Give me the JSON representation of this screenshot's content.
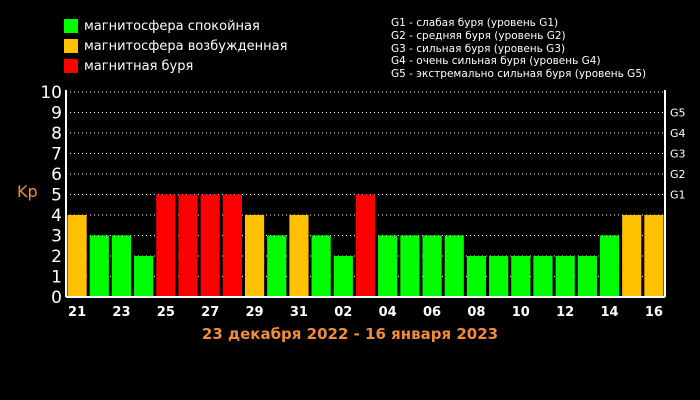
{
  "legend": {
    "items": [
      {
        "label": "магнитосфера спокойная",
        "color": "#00ff00"
      },
      {
        "label": "магнитосфера возбужденная",
        "color": "#ffc000"
      },
      {
        "label": "магнитная буря",
        "color": "#ff0000"
      }
    ],
    "storm_levels": [
      "G1 - слабая буря (уровень G1)",
      "G2 - средняя буря (уровень G2)",
      "G3 - сильная буря (уровень G3)",
      "G4 - очень сильная буря (уровень G4)",
      "G5 - экстремально сильная буря (уровень G5)"
    ]
  },
  "chart_data": {
    "type": "bar",
    "ylabel": "Kp",
    "xlabel": "23 декабря 2022 - 16 января 2023",
    "ylim": [
      0,
      10
    ],
    "y_ticks": [
      "0",
      "1",
      "2",
      "3",
      "4",
      "5",
      "6",
      "7",
      "8",
      "9",
      "10"
    ],
    "right_ticks": [
      {
        "label": "G1",
        "value": 5
      },
      {
        "label": "G2",
        "value": 6
      },
      {
        "label": "G3",
        "value": 7
      },
      {
        "label": "G4",
        "value": 8
      },
      {
        "label": "G5",
        "value": 9
      }
    ],
    "x_tick_labels": [
      "21",
      "23",
      "25",
      "27",
      "29",
      "31",
      "02",
      "04",
      "06",
      "08",
      "10",
      "12",
      "14",
      "16"
    ],
    "values": [
      4,
      3,
      3,
      2,
      5,
      5,
      5,
      5,
      4,
      3,
      4,
      3,
      2,
      5,
      3,
      3,
      3,
      3,
      2,
      2,
      2,
      2,
      2,
      2,
      3,
      4,
      4
    ],
    "colors": {
      "quiet": "#00ff00",
      "active": "#ffc000",
      "storm": "#ff0000"
    },
    "grid": true
  }
}
